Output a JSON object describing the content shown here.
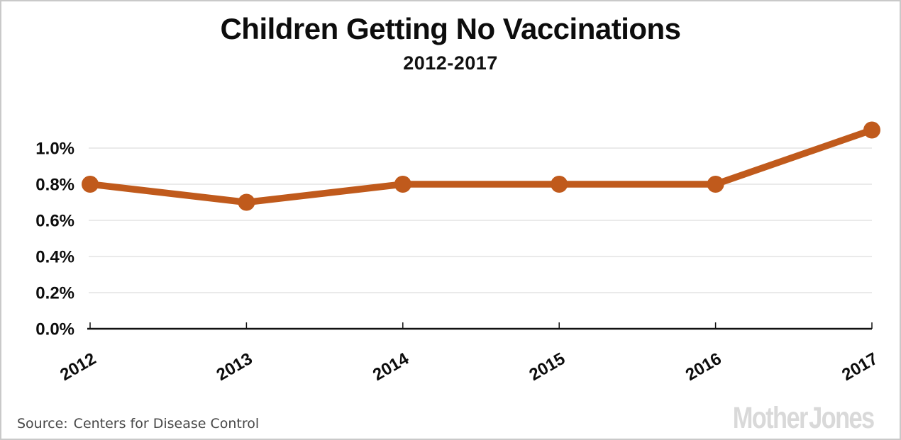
{
  "header": {
    "title": "Children Getting No Vaccinations",
    "subtitle": "2012-2017"
  },
  "footer": {
    "source_label": "Source:",
    "source_text": "Centers for Disease Control",
    "brand": "Mother Jones"
  },
  "colors": {
    "line": "#c05a1c",
    "gridline": "#e4e4e4",
    "axis": "#111111",
    "frame_border": "#c9c9c9",
    "brand_gray": "#d9d9d9"
  },
  "chart_data": {
    "type": "line",
    "title": "Children Getting No Vaccinations",
    "subtitle": "2012-2017",
    "x": [
      "2012",
      "2013",
      "2014",
      "2015",
      "2016",
      "2017"
    ],
    "values": [
      0.8,
      0.7,
      0.8,
      0.8,
      0.8,
      1.1
    ],
    "unit": "%",
    "xlabel": "",
    "ylabel": "",
    "ylim": [
      0,
      1.2
    ],
    "yticks": [
      0.0,
      0.2,
      0.4,
      0.6,
      0.8,
      1.0
    ],
    "ytick_labels": [
      "0.0%",
      "0.2%",
      "0.4%",
      "0.6%",
      "0.8%",
      "1.0%"
    ],
    "grid": true,
    "legend": "none",
    "line_color": "#c05a1c",
    "gridline_color": "#e4e4e4",
    "axis_color": "#111111"
  }
}
